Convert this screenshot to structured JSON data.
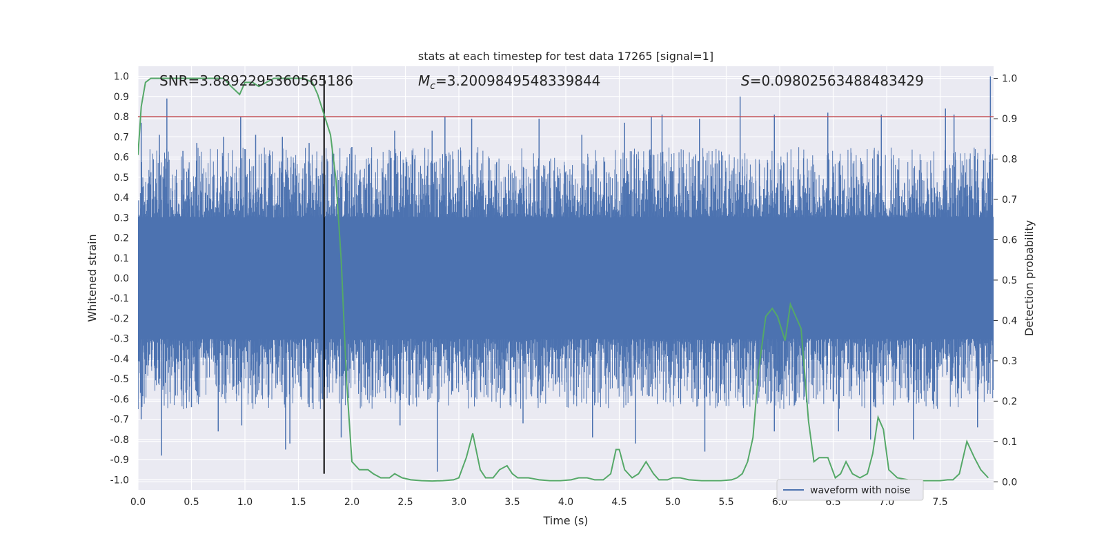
{
  "chart_data": {
    "type": "line",
    "title": "stats at each timestep for test data 17265 [signal=1]",
    "xlabel": "Time (s)",
    "ylabel": "Whitened strain",
    "y2label": "Detection probability",
    "xlim": [
      0.0,
      8.0
    ],
    "ylim": [
      -1.05,
      1.05
    ],
    "y2lim": [
      -0.02,
      1.03
    ],
    "x_ticks": [
      "0.0",
      "0.5",
      "1.0",
      "1.5",
      "2.0",
      "2.5",
      "3.0",
      "3.5",
      "4.0",
      "4.5",
      "5.0",
      "5.5",
      "6.0",
      "6.5",
      "7.0",
      "7.5"
    ],
    "y_ticks": [
      "1.0",
      "0.9",
      "0.8",
      "0.7",
      "0.6",
      "0.5",
      "0.4",
      "0.3",
      "0.2",
      "0.1",
      "0.0",
      "-0.1",
      "-0.2",
      "-0.3",
      "-0.4",
      "-0.5",
      "-0.6",
      "-0.7",
      "-0.8",
      "-0.9",
      "-1.0"
    ],
    "y2_ticks": [
      "1.0",
      "0.9",
      "0.8",
      "0.7",
      "0.6",
      "0.5",
      "0.4",
      "0.3",
      "0.2",
      "0.1",
      "0.0"
    ],
    "grid": true,
    "legend_position": "lower-right",
    "annotations": {
      "snr": "SNR=3.8892295360565186",
      "mc_symbol": "M",
      "mc_sub": "c",
      "mc_value": "=3.2009849548339844",
      "s_symbol": "S",
      "s_value": "=0.09802563488483429"
    },
    "threshold": {
      "y": 0.8,
      "color": "#c44e52"
    },
    "event_time": {
      "x": 1.74,
      "color": "#000000"
    },
    "series": [
      {
        "name": "waveform with noise",
        "color": "#4c72b0",
        "axis": "left",
        "peaks": [
          {
            "x": 0.03,
            "y": 0.77
          },
          {
            "x": 0.2,
            "y": 0.71
          },
          {
            "x": 0.27,
            "y": 0.89
          },
          {
            "x": 0.42,
            "y": 0.63
          },
          {
            "x": 0.55,
            "y": 0.67
          },
          {
            "x": 0.8,
            "y": 0.7
          },
          {
            "x": 0.96,
            "y": 0.8
          },
          {
            "x": 1.1,
            "y": 0.71
          },
          {
            "x": 1.35,
            "y": 0.7
          },
          {
            "x": 1.6,
            "y": 0.67
          },
          {
            "x": 2.0,
            "y": 0.65
          },
          {
            "x": 2.4,
            "y": 0.73
          },
          {
            "x": 2.75,
            "y": 0.73
          },
          {
            "x": 2.87,
            "y": 0.8
          },
          {
            "x": 3.12,
            "y": 0.79
          },
          {
            "x": 3.75,
            "y": 0.79
          },
          {
            "x": 4.15,
            "y": 0.71
          },
          {
            "x": 4.55,
            "y": 0.77
          },
          {
            "x": 4.8,
            "y": 0.8
          },
          {
            "x": 4.9,
            "y": 0.81
          },
          {
            "x": 5.25,
            "y": 0.79
          },
          {
            "x": 5.63,
            "y": 0.9
          },
          {
            "x": 5.95,
            "y": 0.81
          },
          {
            "x": 6.45,
            "y": 0.82
          },
          {
            "x": 6.95,
            "y": 0.81
          },
          {
            "x": 7.55,
            "y": 0.84
          },
          {
            "x": 7.63,
            "y": 0.81
          },
          {
            "x": 7.97,
            "y": 1.0
          }
        ],
        "troughs": [
          {
            "x": 0.03,
            "y": -0.7
          },
          {
            "x": 0.22,
            "y": -0.88
          },
          {
            "x": 0.5,
            "y": -0.64
          },
          {
            "x": 0.75,
            "y": -0.76
          },
          {
            "x": 0.97,
            "y": -0.73
          },
          {
            "x": 1.38,
            "y": -0.85
          },
          {
            "x": 1.42,
            "y": -0.82
          },
          {
            "x": 1.6,
            "y": -0.64
          },
          {
            "x": 1.9,
            "y": -0.79
          },
          {
            "x": 2.45,
            "y": -0.73
          },
          {
            "x": 2.8,
            "y": -0.96
          },
          {
            "x": 3.6,
            "y": -0.72
          },
          {
            "x": 4.25,
            "y": -0.79
          },
          {
            "x": 4.65,
            "y": -0.82
          },
          {
            "x": 5.3,
            "y": -0.86
          },
          {
            "x": 5.95,
            "y": -0.76
          },
          {
            "x": 6.55,
            "y": -0.76
          },
          {
            "x": 6.85,
            "y": -0.8
          },
          {
            "x": 7.25,
            "y": -0.8
          },
          {
            "x": 7.85,
            "y": -0.74
          }
        ]
      },
      {
        "name": "detection probability",
        "color": "#55a868",
        "axis": "right",
        "x": [
          0.0,
          0.03,
          0.07,
          0.12,
          0.2,
          0.3,
          0.4,
          0.5,
          0.6,
          0.7,
          0.8,
          0.87,
          0.95,
          1.0,
          1.07,
          1.13,
          1.2,
          1.27,
          1.35,
          1.45,
          1.55,
          1.63,
          1.68,
          1.74,
          1.8,
          1.85,
          1.9,
          1.95,
          2.0,
          2.07,
          2.15,
          2.2,
          2.27,
          2.35,
          2.4,
          2.47,
          2.55,
          2.65,
          2.75,
          2.85,
          2.95,
          3.0,
          3.07,
          3.13,
          3.2,
          3.25,
          3.32,
          3.38,
          3.45,
          3.5,
          3.55,
          3.65,
          3.75,
          3.85,
          3.95,
          4.05,
          4.12,
          4.2,
          4.27,
          4.35,
          4.42,
          4.47,
          4.5,
          4.55,
          4.62,
          4.68,
          4.75,
          4.82,
          4.87,
          4.95,
          5.0,
          5.07,
          5.15,
          5.27,
          5.35,
          5.45,
          5.55,
          5.6,
          5.65,
          5.7,
          5.75,
          5.8,
          5.87,
          5.93,
          5.98,
          6.05,
          6.1,
          6.15,
          6.2,
          6.27,
          6.32,
          6.37,
          6.45,
          6.52,
          6.57,
          6.62,
          6.68,
          6.75,
          6.82,
          6.87,
          6.92,
          6.97,
          7.02,
          7.1,
          7.2,
          7.3,
          7.4,
          7.5,
          7.57,
          7.62,
          7.68,
          7.75,
          7.82,
          7.88,
          7.95
        ],
        "values": [
          0.81,
          0.93,
          0.99,
          1.0,
          1.0,
          1.0,
          1.0,
          1.0,
          1.0,
          1.0,
          1.0,
          0.98,
          0.96,
          0.99,
          0.99,
          0.98,
          0.99,
          1.0,
          1.0,
          1.0,
          1.0,
          0.99,
          0.96,
          0.91,
          0.86,
          0.75,
          0.55,
          0.25,
          0.05,
          0.03,
          0.03,
          0.02,
          0.01,
          0.01,
          0.02,
          0.01,
          0.005,
          0.003,
          0.002,
          0.003,
          0.005,
          0.01,
          0.06,
          0.12,
          0.03,
          0.01,
          0.01,
          0.03,
          0.04,
          0.02,
          0.01,
          0.01,
          0.005,
          0.003,
          0.003,
          0.005,
          0.01,
          0.01,
          0.005,
          0.005,
          0.02,
          0.08,
          0.08,
          0.03,
          0.01,
          0.02,
          0.05,
          0.02,
          0.005,
          0.005,
          0.01,
          0.01,
          0.005,
          0.003,
          0.003,
          0.003,
          0.005,
          0.01,
          0.02,
          0.05,
          0.11,
          0.27,
          0.41,
          0.43,
          0.41,
          0.35,
          0.44,
          0.41,
          0.38,
          0.15,
          0.05,
          0.06,
          0.06,
          0.01,
          0.02,
          0.05,
          0.02,
          0.01,
          0.02,
          0.07,
          0.16,
          0.13,
          0.03,
          0.01,
          0.005,
          0.003,
          0.003,
          0.003,
          0.005,
          0.005,
          0.02,
          0.1,
          0.06,
          0.03,
          0.01
        ]
      }
    ]
  }
}
